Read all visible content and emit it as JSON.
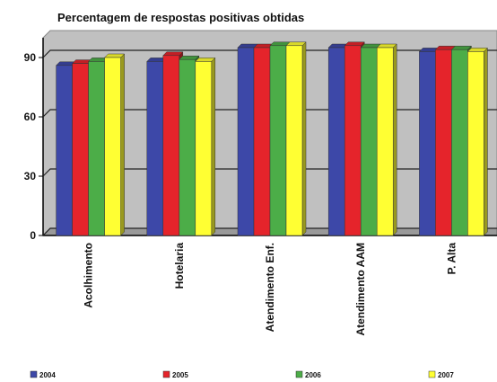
{
  "chart_data": {
    "type": "bar",
    "title": "Percentagem de respostas positivas obtidas",
    "categories": [
      "Acolhimento",
      "Hotelaria",
      "Atendimento Enf.",
      "Atendimento AAM",
      "P. Alta"
    ],
    "series": [
      {
        "name": "2004",
        "color": "#3d48a8",
        "values": [
          86,
          88,
          95,
          95,
          93
        ]
      },
      {
        "name": "2005",
        "color": "#e5242b",
        "values": [
          87,
          91,
          95,
          96,
          94
        ]
      },
      {
        "name": "2006",
        "color": "#4cad48",
        "values": [
          88,
          89,
          96,
          95,
          94
        ]
      },
      {
        "name": "2007",
        "color": "#ffff33",
        "values": [
          90,
          88,
          96,
          95,
          93
        ]
      }
    ],
    "ylim": [
      0,
      100
    ],
    "yticks": [
      0,
      30,
      60,
      90
    ],
    "grid": true,
    "legend": "bottom"
  }
}
